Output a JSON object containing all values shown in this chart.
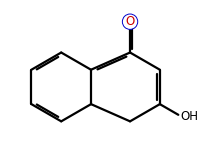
{
  "bg_color": "#ffffff",
  "bond_color": "#000000",
  "O_color": "#cc0000",
  "O_outline_color": "#0000cc",
  "OH_color": "#000000",
  "line_width": 1.6,
  "figsize": [
    2.13,
    1.63
  ],
  "dpi": 100,
  "O_fontsize": 8.5,
  "OH_fontsize": 8.5
}
